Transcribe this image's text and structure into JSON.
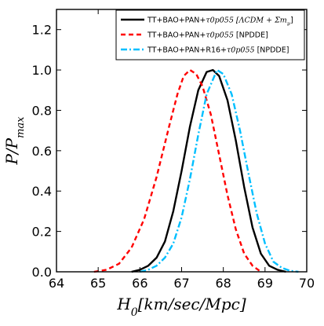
{
  "chart_data": {
    "type": "line",
    "xlabel": "H_0[km/sec/Mpc]",
    "ylabel": "P/P_max",
    "xlim": [
      64,
      70
    ],
    "ylim": [
      0.0,
      1.3
    ],
    "x_ticks": [
      "64",
      "65",
      "66",
      "67",
      "68",
      "69",
      "70"
    ],
    "y_ticks": [
      "0.0",
      "0.2",
      "0.4",
      "0.6",
      "0.8",
      "1.0",
      "1.2"
    ],
    "legend_position": "top-right",
    "grid": false,
    "series": [
      {
        "name": "TT+BAO+PAN+τ0p055 [ΛCDM+Σm_ν]",
        "legend_main": "TT+BAO+PAN+",
        "legend_math": "τ0p055 [ΛCDM + Σm",
        "legend_sub": "ν",
        "legend_tail": "]",
        "color": "#000000",
        "style": "solid",
        "x": [
          65.8,
          66.0,
          66.2,
          66.4,
          66.6,
          66.8,
          67.0,
          67.2,
          67.4,
          67.6,
          67.75,
          67.9,
          68.1,
          68.3,
          68.5,
          68.7,
          68.9,
          69.1,
          69.3,
          69.5
        ],
        "y": [
          0.0,
          0.01,
          0.03,
          0.07,
          0.15,
          0.3,
          0.5,
          0.72,
          0.9,
          0.99,
          1.0,
          0.97,
          0.85,
          0.65,
          0.42,
          0.22,
          0.09,
          0.03,
          0.01,
          0.0
        ]
      },
      {
        "name": "TT+BAO+PAN+τ0p055 [NPDDE]",
        "legend_main": "TT+BAO+PAN+",
        "legend_math": "τ0p055",
        "legend_sub": "",
        "legend_tail": " [NPDDE]",
        "color": "#ff0000",
        "style": "dashed",
        "x": [
          64.9,
          65.2,
          65.5,
          65.8,
          66.1,
          66.4,
          66.7,
          66.9,
          67.05,
          67.2,
          67.35,
          67.5,
          67.7,
          67.9,
          68.1,
          68.3,
          68.5,
          68.7,
          68.9
        ],
        "y": [
          0.0,
          0.01,
          0.04,
          0.12,
          0.26,
          0.47,
          0.72,
          0.88,
          0.97,
          1.0,
          0.98,
          0.92,
          0.78,
          0.58,
          0.38,
          0.21,
          0.09,
          0.03,
          0.0
        ]
      },
      {
        "name": "TT+BAO+PAN+R16+τ0p055 [NPDDE]",
        "legend_main": "TT+BAO+PAN+R16+",
        "legend_math": "τ0p055",
        "legend_sub": "",
        "legend_tail": " [NPDDE]",
        "color": "#00bfff",
        "style": "dashdot",
        "x": [
          66.0,
          66.2,
          66.4,
          66.6,
          66.8,
          67.0,
          67.2,
          67.4,
          67.6,
          67.85,
          68.0,
          68.2,
          68.4,
          68.6,
          68.8,
          69.0,
          69.2,
          69.4,
          69.6,
          69.8
        ],
        "y": [
          0.0,
          0.01,
          0.03,
          0.07,
          0.14,
          0.27,
          0.46,
          0.68,
          0.88,
          1.0,
          0.98,
          0.88,
          0.7,
          0.49,
          0.29,
          0.14,
          0.05,
          0.02,
          0.005,
          0.0
        ]
      }
    ]
  }
}
